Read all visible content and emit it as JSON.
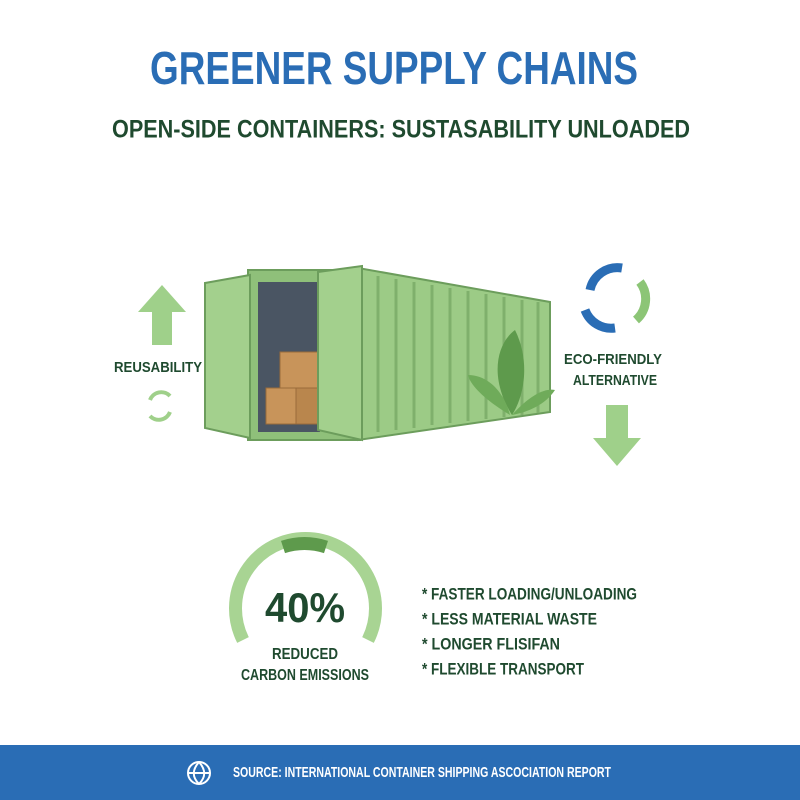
{
  "header": {
    "title": "GREENER SUPPLY CHAINS",
    "subtitle": "OPEN-SIDE CONTAINERS: SUSTASABILITY UNLOADED"
  },
  "labels": {
    "left": "REUSABILITY",
    "right": [
      "ECO-FRIENDLY",
      "ALTERNATIVE"
    ]
  },
  "stat": {
    "value": "40%",
    "caption": [
      "REDUCED",
      "CARBON EMISSIONS"
    ]
  },
  "benefits": [
    "* FASTER LOADING/UNLOADING",
    "* LESS MATERIAL WASTE",
    "* LONGER FLISIFAN",
    "* FLEXIBLE TRANSPORT"
  ],
  "footer": {
    "source": "SOURCE: INTERNATIONAL CONTAINER SHIPPING ASCOCIATION REPORT"
  }
}
